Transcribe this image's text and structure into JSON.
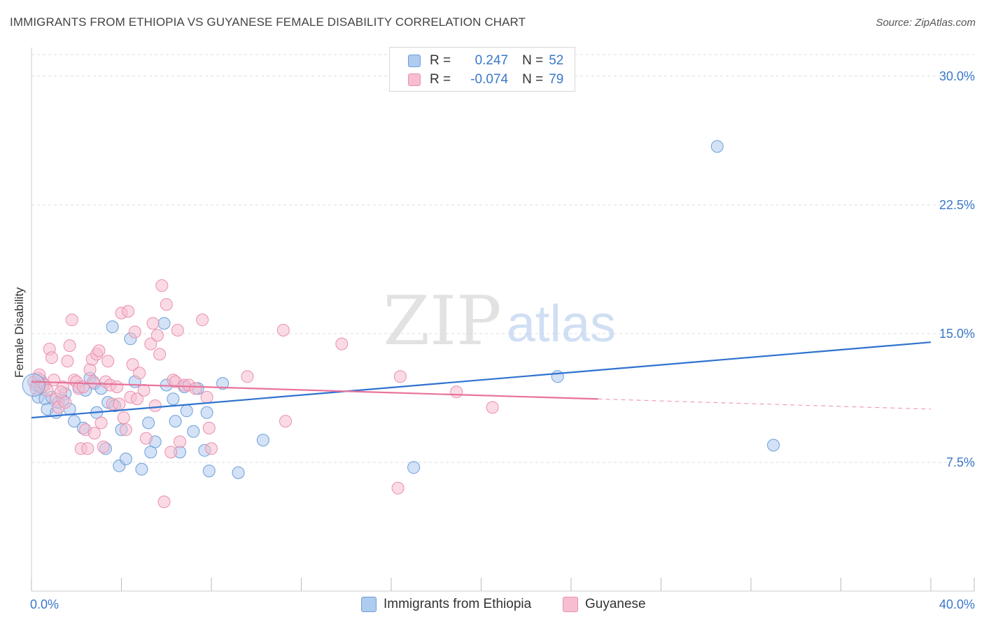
{
  "title": "IMMIGRANTS FROM ETHIOPIA VS GUYANESE FEMALE DISABILITY CORRELATION CHART",
  "source": "Source: ZipAtlas.com",
  "watermark": {
    "zip": "ZIP",
    "atlas": "atlas"
  },
  "legend": {
    "r_label": "R =",
    "n_label": "N =",
    "rows": [
      {
        "r": "0.247",
        "n": "52"
      },
      {
        "r": "-0.074",
        "n": "79"
      }
    ]
  },
  "colors": {
    "blue_fill": "#aecbf0",
    "blue_stroke": "#6b9fd8",
    "blue_line": "#2f72d0",
    "pink_fill": "#f6bed0",
    "pink_stroke": "#ea8fae",
    "pink_line": "#e8739a",
    "axis_text": "#3a78c9",
    "grid": "#dddddd"
  },
  "chart_data": {
    "type": "scatter",
    "title": "IMMIGRANTS FROM ETHIOPIA VS GUYANESE FEMALE DISABILITY CORRELATION CHART",
    "xlabel": "",
    "ylabel": "Female Disability",
    "xlim": [
      0,
      40
    ],
    "ylim": [
      0,
      31.5
    ],
    "x_tick_labels": [
      {
        "value": 0,
        "label": "0.0%"
      },
      {
        "value": 40,
        "label": "40.0%"
      }
    ],
    "y_tick_labels": [
      {
        "value": 7.5,
        "label": "7.5%"
      },
      {
        "value": 15,
        "label": "15.0%"
      },
      {
        "value": 22.5,
        "label": "22.5%"
      },
      {
        "value": 30,
        "label": "30.0%"
      }
    ],
    "x_minor_ticks": [
      0,
      4,
      8,
      12,
      16,
      20,
      24,
      28,
      32,
      36,
      40
    ],
    "series": [
      {
        "name": "Immigrants from Ethiopia",
        "color": "blue",
        "r": 0.247,
        "n": 52,
        "trend": {
          "x0": 0,
          "y0": 10.1,
          "x1": 40,
          "y1": 14.5,
          "solid_until": 40
        },
        "points": [
          [
            0.2,
            12.0
          ],
          [
            0.3,
            11.3
          ],
          [
            0.5,
            11.9
          ],
          [
            0.6,
            11.2
          ],
          [
            0.7,
            10.6
          ],
          [
            0.9,
            11.3
          ],
          [
            1.1,
            10.4
          ],
          [
            1.2,
            11.0
          ],
          [
            1.5,
            11.5
          ],
          [
            1.7,
            10.6
          ],
          [
            1.9,
            9.9
          ],
          [
            2.1,
            11.9
          ],
          [
            2.3,
            9.5
          ],
          [
            2.4,
            11.7
          ],
          [
            2.6,
            12.4
          ],
          [
            2.8,
            12.1
          ],
          [
            2.9,
            10.4
          ],
          [
            3.1,
            11.8
          ],
          [
            3.3,
            8.3
          ],
          [
            3.4,
            11.0
          ],
          [
            3.6,
            15.4
          ],
          [
            3.7,
            10.8
          ],
          [
            3.9,
            7.3
          ],
          [
            4.0,
            9.4
          ],
          [
            4.2,
            7.7
          ],
          [
            4.4,
            14.7
          ],
          [
            4.6,
            12.2
          ],
          [
            4.9,
            7.1
          ],
          [
            5.2,
            9.8
          ],
          [
            5.3,
            8.1
          ],
          [
            5.5,
            8.7
          ],
          [
            5.9,
            15.6
          ],
          [
            6.0,
            12.0
          ],
          [
            6.3,
            11.2
          ],
          [
            6.4,
            9.9
          ],
          [
            6.6,
            8.1
          ],
          [
            6.8,
            11.9
          ],
          [
            6.9,
            10.5
          ],
          [
            7.2,
            9.3
          ],
          [
            7.4,
            11.8
          ],
          [
            7.7,
            8.2
          ],
          [
            7.8,
            10.4
          ],
          [
            7.9,
            7.0
          ],
          [
            8.5,
            12.1
          ],
          [
            9.2,
            6.9
          ],
          [
            10.3,
            8.8
          ],
          [
            17.0,
            7.2
          ],
          [
            23.4,
            12.5
          ],
          [
            30.5,
            25.9
          ],
          [
            33.0,
            8.5
          ],
          [
            0.4,
            12.3
          ],
          [
            1.4,
            11.1
          ]
        ]
      },
      {
        "name": "Guyanese",
        "color": "pink",
        "r": -0.074,
        "n": 79,
        "trend": {
          "x0": 0,
          "y0": 12.2,
          "x1": 40,
          "y1": 10.6,
          "solid_until": 25.2
        },
        "points": [
          [
            0.1,
            12.2
          ],
          [
            0.2,
            11.8
          ],
          [
            0.3,
            12.4
          ],
          [
            0.4,
            11.9
          ],
          [
            0.5,
            12.1
          ],
          [
            0.6,
            12.0
          ],
          [
            0.7,
            11.7
          ],
          [
            0.8,
            14.1
          ],
          [
            0.9,
            13.6
          ],
          [
            1.0,
            12.3
          ],
          [
            1.1,
            11.2
          ],
          [
            1.2,
            10.7
          ],
          [
            1.4,
            11.9
          ],
          [
            1.5,
            11.0
          ],
          [
            1.6,
            13.4
          ],
          [
            1.7,
            14.3
          ],
          [
            1.8,
            15.8
          ],
          [
            1.9,
            12.3
          ],
          [
            2.0,
            12.2
          ],
          [
            2.1,
            11.8
          ],
          [
            2.2,
            8.3
          ],
          [
            2.3,
            11.9
          ],
          [
            2.4,
            9.4
          ],
          [
            2.5,
            8.3
          ],
          [
            2.6,
            12.9
          ],
          [
            2.7,
            13.5
          ],
          [
            2.8,
            9.2
          ],
          [
            2.9,
            13.8
          ],
          [
            3.0,
            14.0
          ],
          [
            3.1,
            9.8
          ],
          [
            3.2,
            8.4
          ],
          [
            3.3,
            12.2
          ],
          [
            3.4,
            13.4
          ],
          [
            3.5,
            12.0
          ],
          [
            3.6,
            10.9
          ],
          [
            3.8,
            11.9
          ],
          [
            3.9,
            10.9
          ],
          [
            4.0,
            16.2
          ],
          [
            4.1,
            10.1
          ],
          [
            4.2,
            9.4
          ],
          [
            4.3,
            16.3
          ],
          [
            4.4,
            11.3
          ],
          [
            4.5,
            13.2
          ],
          [
            4.6,
            15.1
          ],
          [
            4.7,
            11.2
          ],
          [
            4.8,
            12.7
          ],
          [
            5.0,
            11.7
          ],
          [
            5.1,
            8.9
          ],
          [
            5.3,
            14.4
          ],
          [
            5.4,
            15.6
          ],
          [
            5.5,
            10.8
          ],
          [
            5.6,
            14.9
          ],
          [
            5.7,
            13.8
          ],
          [
            5.8,
            17.8
          ],
          [
            5.9,
            5.2
          ],
          [
            6.0,
            16.7
          ],
          [
            6.2,
            8.1
          ],
          [
            6.3,
            12.3
          ],
          [
            6.4,
            12.2
          ],
          [
            6.5,
            15.2
          ],
          [
            6.6,
            8.7
          ],
          [
            6.8,
            12.0
          ],
          [
            7.0,
            12.0
          ],
          [
            7.3,
            11.8
          ],
          [
            7.6,
            15.8
          ],
          [
            7.8,
            11.3
          ],
          [
            7.9,
            9.5
          ],
          [
            8.0,
            8.3
          ],
          [
            9.6,
            12.5
          ],
          [
            11.2,
            15.2
          ],
          [
            11.3,
            9.9
          ],
          [
            13.8,
            14.4
          ],
          [
            16.3,
            6.0
          ],
          [
            16.4,
            12.5
          ],
          [
            18.9,
            11.6
          ],
          [
            20.5,
            10.7
          ],
          [
            0.35,
            12.6
          ],
          [
            1.3,
            11.6
          ],
          [
            2.75,
            12.2
          ]
        ]
      }
    ]
  },
  "bottom_legend": [
    {
      "label": "Immigrants from Ethiopia"
    },
    {
      "label": "Guyanese"
    }
  ]
}
